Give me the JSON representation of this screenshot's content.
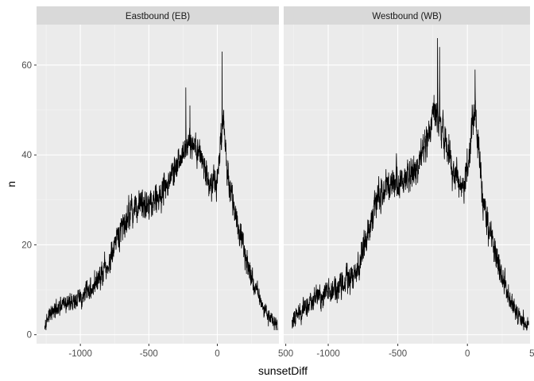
{
  "chart_data": {
    "type": "line",
    "xlabel": "sunsetDiff",
    "ylabel": "n",
    "xlim": [
      -1320,
      450
    ],
    "ylim": [
      -2,
      69
    ],
    "x_ticks": [
      -1000,
      -500,
      0,
      500
    ],
    "x_tick_labels": [
      "-1000",
      "-500",
      "0",
      "500"
    ],
    "y_ticks": [
      0,
      20,
      40,
      60
    ],
    "y_tick_labels": [
      "0",
      "20",
      "40",
      "60"
    ],
    "x_range": [
      -1260,
      440
    ],
    "line_color": "#000000",
    "panel_background": "#ebebeb",
    "strip_background": "#d9d9d9",
    "grid": true,
    "panels": [
      {
        "label": "Eastbound (EB)",
        "profile_points": [
          [
            -1260,
            3
          ],
          [
            -1200,
            5
          ],
          [
            -1100,
            7
          ],
          [
            -1000,
            8
          ],
          [
            -900,
            11
          ],
          [
            -800,
            15
          ],
          [
            -720,
            22
          ],
          [
            -650,
            27
          ],
          [
            -550,
            29
          ],
          [
            -450,
            30
          ],
          [
            -380,
            33
          ],
          [
            -300,
            37
          ],
          [
            -230,
            42
          ],
          [
            -160,
            43
          ],
          [
            -100,
            38
          ],
          [
            -50,
            33
          ],
          [
            0,
            34
          ],
          [
            20,
            42
          ],
          [
            45,
            48
          ],
          [
            70,
            36
          ],
          [
            100,
            32
          ],
          [
            150,
            24
          ],
          [
            200,
            18
          ],
          [
            250,
            13
          ],
          [
            300,
            9
          ],
          [
            350,
            5
          ],
          [
            400,
            3
          ],
          [
            440,
            2
          ]
        ],
        "noise_amplitude": 3.5,
        "peak_points": [
          [
            35,
            63
          ],
          [
            -230,
            55
          ],
          [
            -200,
            51
          ]
        ]
      },
      {
        "label": "Westbound (WB)",
        "profile_points": [
          [
            -1260,
            3
          ],
          [
            -1200,
            5
          ],
          [
            -1100,
            8
          ],
          [
            -1000,
            9
          ],
          [
            -900,
            11
          ],
          [
            -800,
            14
          ],
          [
            -720,
            22
          ],
          [
            -650,
            30
          ],
          [
            -550,
            34
          ],
          [
            -450,
            34
          ],
          [
            -380,
            36
          ],
          [
            -300,
            43
          ],
          [
            -230,
            50
          ],
          [
            -170,
            44
          ],
          [
            -120,
            38
          ],
          [
            -60,
            34
          ],
          [
            -20,
            33
          ],
          [
            20,
            42
          ],
          [
            50,
            50
          ],
          [
            80,
            42
          ],
          [
            110,
            30
          ],
          [
            150,
            24
          ],
          [
            200,
            19
          ],
          [
            250,
            13
          ],
          [
            300,
            8
          ],
          [
            350,
            5
          ],
          [
            400,
            3
          ],
          [
            440,
            2
          ]
        ],
        "noise_amplitude": 4,
        "peak_points": [
          [
            -215,
            66
          ],
          [
            -200,
            64
          ],
          [
            55,
            59
          ]
        ]
      }
    ]
  }
}
